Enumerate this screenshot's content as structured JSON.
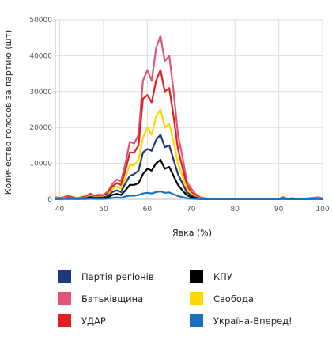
{
  "chart_data": {
    "type": "line",
    "title": "",
    "xlabel": "Явка (%)",
    "ylabel": "Количество голосов за партию (шт)",
    "xlim": [
      39,
      100
    ],
    "ylim": [
      0,
      50000
    ],
    "x_ticks": [
      40,
      50,
      60,
      70,
      80,
      90,
      100
    ],
    "y_ticks": [
      0,
      10000,
      20000,
      30000,
      40000,
      50000
    ],
    "grid": true,
    "legend_position": "bottom",
    "x": [
      39,
      40,
      41,
      42,
      43,
      44,
      45,
      46,
      47,
      48,
      49,
      50,
      51,
      52,
      53,
      54,
      55,
      56,
      57,
      58,
      59,
      60,
      61,
      62,
      63,
      64,
      65,
      66,
      67,
      68,
      69,
      70,
      71,
      72,
      73,
      74,
      75,
      76,
      77,
      78,
      79,
      80,
      81,
      82,
      83,
      84,
      85,
      86,
      87,
      88,
      89,
      90,
      91,
      92,
      93,
      94,
      95,
      96,
      97,
      98,
      99,
      100
    ],
    "series": [
      {
        "name": "Батьківщина",
        "color": "#e05575",
        "values": [
          600,
          400,
          600,
          1000,
          600,
          300,
          600,
          900,
          1600,
          1000,
          1300,
          1200,
          2200,
          4200,
          5500,
          5000,
          10000,
          16000,
          15500,
          18000,
          33000,
          36000,
          33000,
          42000,
          45500,
          38500,
          40000,
          30000,
          18000,
          12000,
          5000,
          3000,
          1500,
          600,
          300,
          200,
          150,
          150,
          150,
          150,
          100,
          100,
          100,
          100,
          100,
          100,
          100,
          100,
          100,
          100,
          100,
          100,
          600,
          150,
          300,
          200,
          200,
          200,
          300,
          400,
          600,
          200
        ]
      },
      {
        "name": "УДАР",
        "color": "#e02020",
        "values": [
          400,
          300,
          500,
          700,
          500,
          250,
          500,
          700,
          1300,
          800,
          1000,
          900,
          1700,
          3500,
          4500,
          4000,
          8000,
          13000,
          13000,
          15000,
          28000,
          29000,
          27000,
          33000,
          36000,
          30000,
          31000,
          23000,
          14000,
          9000,
          4000,
          2000,
          1000,
          450,
          250,
          150,
          120,
          120,
          120,
          120,
          80,
          80,
          80,
          80,
          80,
          80,
          80,
          80,
          80,
          80,
          80,
          80,
          500,
          120,
          250,
          150,
          150,
          150,
          200,
          300,
          400,
          150
        ]
      },
      {
        "name": "Свобода",
        "color": "#ffd700",
        "values": [
          300,
          200,
          400,
          500,
          400,
          200,
          400,
          500,
          1000,
          600,
          700,
          700,
          1200,
          2800,
          3500,
          3000,
          6000,
          9500,
          9500,
          11000,
          17000,
          20000,
          18000,
          23000,
          25000,
          20000,
          21000,
          16000,
          10000,
          6500,
          3000,
          1500,
          700,
          300,
          200,
          100,
          100,
          100,
          100,
          100,
          60,
          60,
          60,
          60,
          60,
          60,
          60,
          60,
          60,
          60,
          60,
          60,
          400,
          100,
          200,
          100,
          100,
          100,
          150,
          200,
          300,
          100
        ]
      },
      {
        "name": "Партія регіонів",
        "color": "#1a3a7a",
        "values": [
          200,
          150,
          250,
          350,
          300,
          150,
          300,
          350,
          700,
          450,
          500,
          500,
          900,
          2000,
          2500,
          2000,
          4500,
          6500,
          7000,
          8000,
          13000,
          14000,
          13500,
          16500,
          18000,
          14500,
          15000,
          11000,
          7000,
          4500,
          2000,
          1000,
          500,
          200,
          100,
          80,
          80,
          80,
          80,
          80,
          50,
          50,
          50,
          50,
          50,
          50,
          50,
          50,
          50,
          50,
          50,
          50,
          300,
          80,
          150,
          80,
          80,
          80,
          100,
          150,
          200,
          80
        ]
      },
      {
        "name": "КПУ",
        "color": "#000000",
        "values": [
          100,
          100,
          150,
          200,
          150,
          100,
          150,
          200,
          400,
          250,
          300,
          300,
          500,
          1200,
          1500,
          1200,
          2500,
          4000,
          4000,
          4500,
          7000,
          8500,
          8000,
          10000,
          11000,
          8500,
          9000,
          6500,
          4000,
          2500,
          1200,
          600,
          300,
          100,
          80,
          50,
          50,
          50,
          50,
          50,
          40,
          40,
          40,
          40,
          40,
          40,
          40,
          40,
          40,
          40,
          40,
          40,
          200,
          50,
          100,
          50,
          50,
          50,
          60,
          100,
          150,
          50
        ]
      },
      {
        "name": "Україна-Вперед!",
        "color": "#1a70c0",
        "values": [
          50,
          40,
          60,
          80,
          60,
          40,
          60,
          80,
          150,
          100,
          120,
          120,
          200,
          400,
          500,
          400,
          800,
          1000,
          1000,
          1200,
          1600,
          1800,
          1600,
          2000,
          2200,
          1800,
          1900,
          1400,
          900,
          600,
          300,
          150,
          80,
          40,
          30,
          20,
          20,
          20,
          20,
          20,
          15,
          15,
          15,
          15,
          15,
          15,
          15,
          15,
          15,
          15,
          15,
          15,
          80,
          20,
          40,
          20,
          20,
          20,
          30,
          40,
          60,
          20
        ]
      }
    ],
    "legend": [
      {
        "label": "Партія регіонів",
        "color": "#1a3a7a"
      },
      {
        "label": "Батьківщина",
        "color": "#e05575"
      },
      {
        "label": "УДАР",
        "color": "#e02020"
      },
      {
        "label": "КПУ",
        "color": "#000000"
      },
      {
        "label": "Свобода",
        "color": "#ffd700"
      },
      {
        "label": "Україна-Вперед!",
        "color": "#1a70c0"
      }
    ]
  }
}
